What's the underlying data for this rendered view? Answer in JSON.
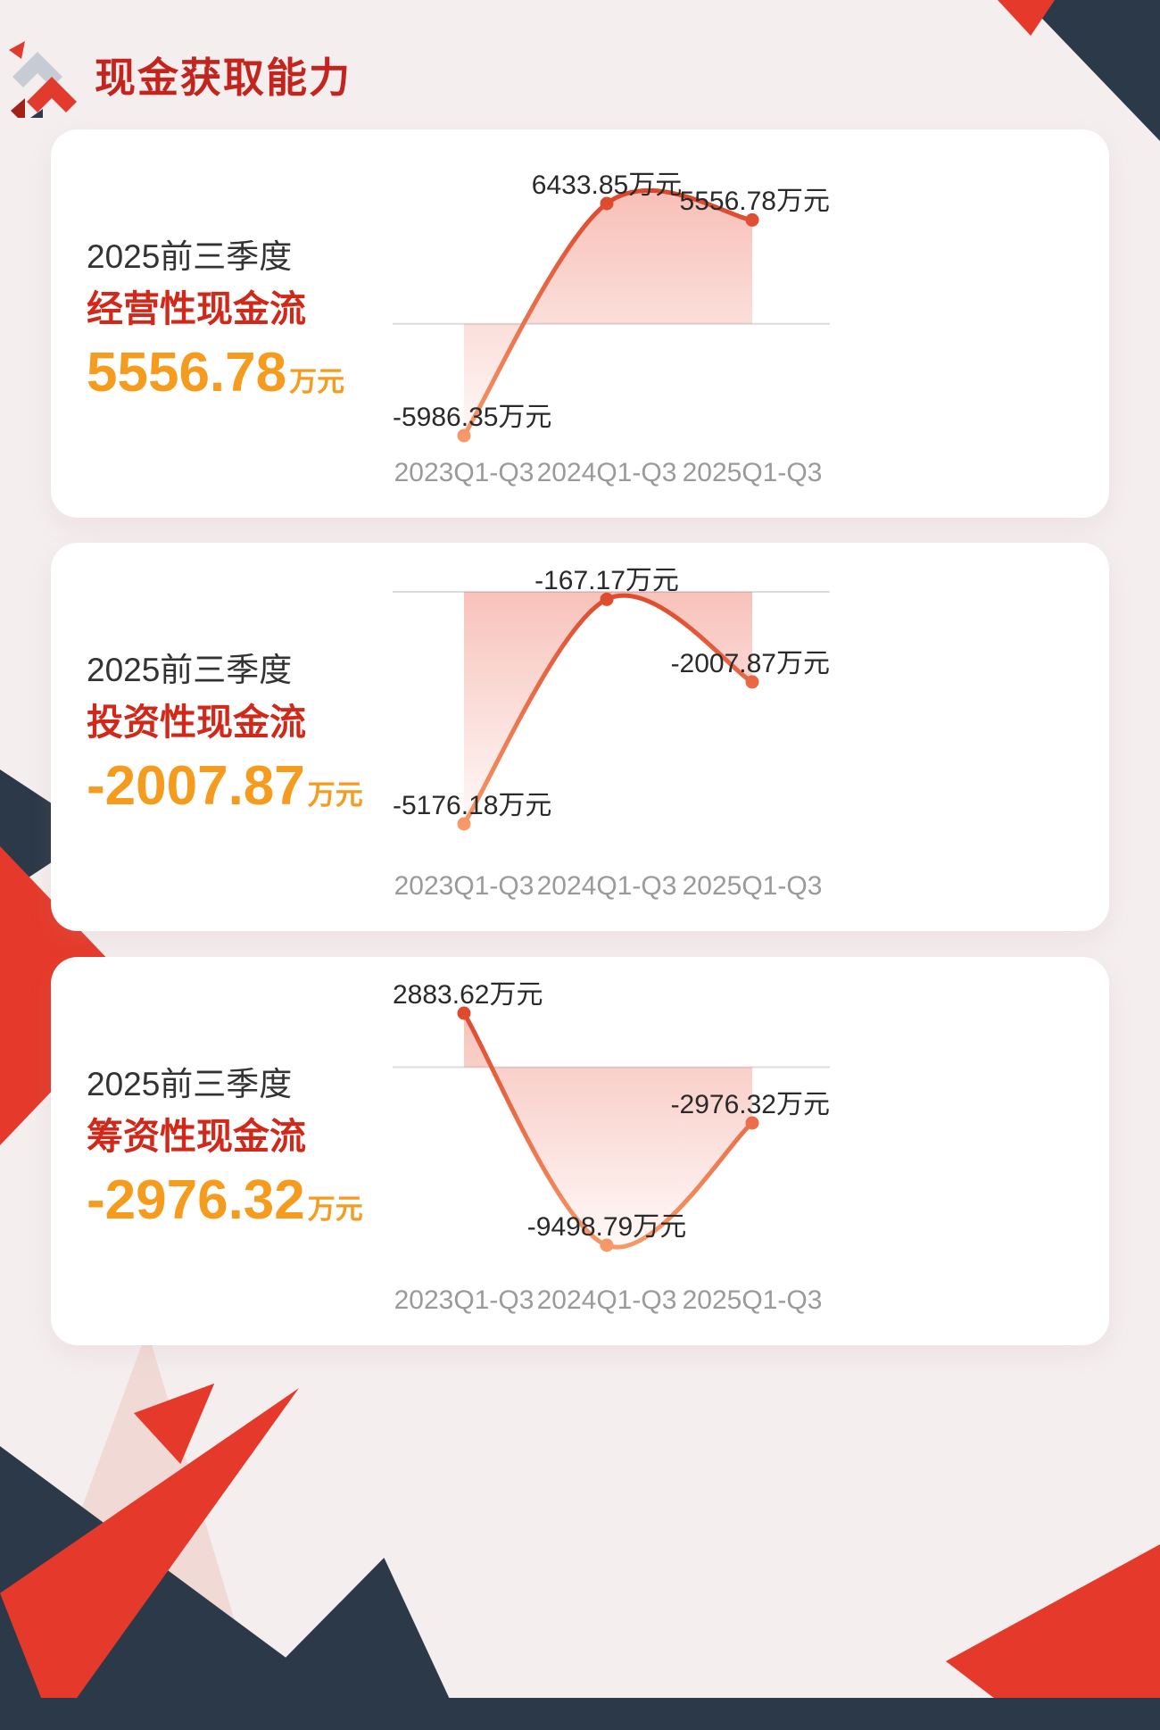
{
  "page_title": "现金获取能力",
  "colors": {
    "background": "#f4eeee",
    "title_red": "#c3251e",
    "metric_red": "#d2281a",
    "value_orange": "#f59b1e",
    "navy": "#2c3949",
    "deco_red": "#e53a2b",
    "line_gradient_top": "#d93a22",
    "line_gradient_bottom": "#f89c6b",
    "fill_pink": "rgba(233,75,52,0.40)",
    "zero_line_grey": "#dcdcdc",
    "axis_grey": "#9a9a9a"
  },
  "cards": [
    {
      "period": "2025前三季度",
      "metric": "经营性现金流",
      "value": "5556.78",
      "unit": "万元"
    },
    {
      "period": "2025前三季度",
      "metric": "投资性现金流",
      "value": "-2007.87",
      "unit": "万元"
    },
    {
      "period": "2025前三季度",
      "metric": "筹资性现金流",
      "value": "-2976.32",
      "unit": "万元"
    }
  ],
  "chart_data": [
    {
      "type": "line",
      "title": "经营性现金流",
      "categories": [
        "2023Q1-Q3",
        "2024Q1-Q3",
        "2025Q1-Q3"
      ],
      "values": [
        -5986.35,
        6433.85,
        5556.78
      ],
      "point_labels": [
        "-5986.35万元",
        "6433.85万元",
        "5556.78万元"
      ],
      "unit": "万元",
      "baseline": 0,
      "smooth": true,
      "area_fill": true,
      "grid": false,
      "legend": false
    },
    {
      "type": "line",
      "title": "投资性现金流",
      "categories": [
        "2023Q1-Q3",
        "2024Q1-Q3",
        "2025Q1-Q3"
      ],
      "values": [
        -5176.18,
        -167.17,
        -2007.87
      ],
      "point_labels": [
        "-5176.18万元",
        "-167.17万元",
        "-2007.87万元"
      ],
      "unit": "万元",
      "baseline": 0,
      "smooth": true,
      "area_fill": true,
      "grid": false,
      "legend": false
    },
    {
      "type": "line",
      "title": "筹资性现金流",
      "categories": [
        "2023Q1-Q3",
        "2024Q1-Q3",
        "2025Q1-Q3"
      ],
      "values": [
        2883.62,
        -9498.79,
        -2976.32
      ],
      "point_labels": [
        "2883.62万元",
        "-9498.79万元",
        "-2976.32万元"
      ],
      "unit": "万元",
      "baseline": 0,
      "smooth": true,
      "area_fill": true,
      "grid": false,
      "legend": false
    }
  ]
}
